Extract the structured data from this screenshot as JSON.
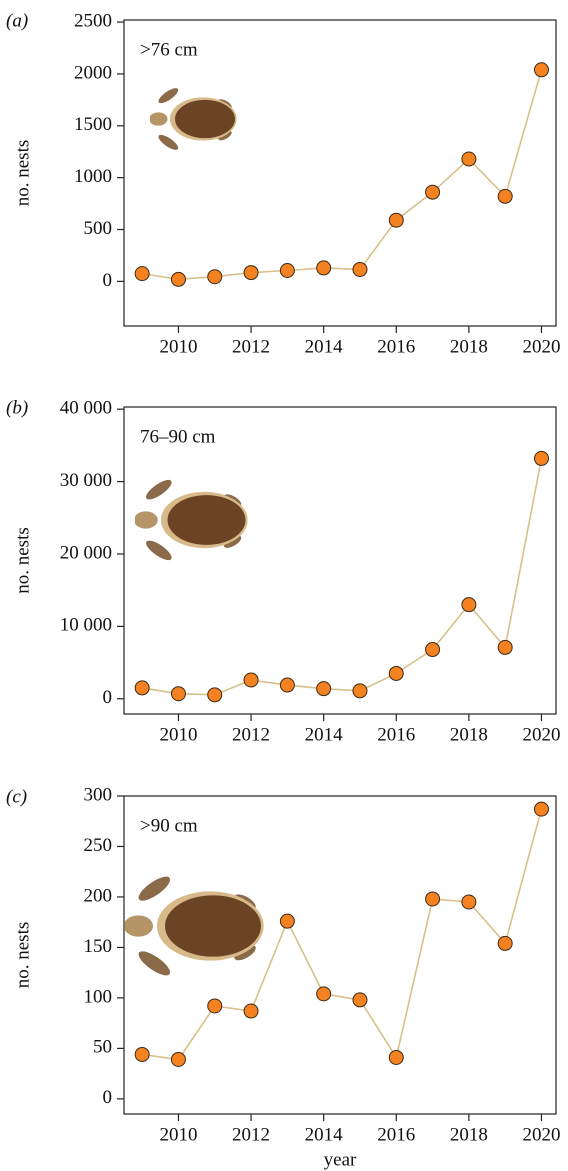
{
  "chart_data": [
    {
      "type": "line",
      "panel_label": "(a)",
      "annotation": ">76 cm",
      "y_label": "no. nests",
      "x": [
        2009,
        2010,
        2011,
        2012,
        2013,
        2014,
        2015,
        2016,
        2017,
        2018,
        2019,
        2020
      ],
      "values": [
        75,
        20,
        45,
        85,
        105,
        130,
        115,
        590,
        860,
        1180,
        820,
        2040
      ],
      "color": "#f58220",
      "line_color": "#d9c08a",
      "xlim": [
        2008.5,
        2020.4
      ],
      "xticks": [
        2010,
        2012,
        2014,
        2016,
        2018,
        2020
      ],
      "ylim": [
        -430,
        2520
      ],
      "yticks": [
        0,
        500,
        1000,
        1500,
        2000,
        2500
      ]
    },
    {
      "type": "line",
      "panel_label": "(b)",
      "annotation": "76–90 cm",
      "y_label": "no. nests",
      "x": [
        2009,
        2010,
        2011,
        2012,
        2013,
        2014,
        2015,
        2016,
        2017,
        2018,
        2019,
        2020
      ],
      "values": [
        1500,
        700,
        550,
        2600,
        1900,
        1400,
        1100,
        3500,
        6800,
        13000,
        7100,
        33200
      ],
      "color": "#f58220",
      "line_color": "#d9c08a",
      "xlim": [
        2008.5,
        2020.4
      ],
      "xticks": [
        2010,
        2012,
        2014,
        2016,
        2018,
        2020
      ],
      "ylim": [
        -2100,
        40300
      ],
      "yticks": [
        0,
        {
          "value": 10000,
          "label": "10 000"
        },
        {
          "value": 20000,
          "label": "20 000"
        },
        {
          "value": 30000,
          "label": "30 000"
        },
        {
          "value": 40000,
          "label": "40 000"
        }
      ]
    },
    {
      "type": "line",
      "panel_label": "(c)",
      "annotation": ">90 cm",
      "y_label": "no. nests",
      "x_label": "year",
      "x": [
        2009,
        2010,
        2011,
        2012,
        2013,
        2014,
        2015,
        2016,
        2017,
        2018,
        2019,
        2020
      ],
      "values": [
        44,
        39,
        92,
        87,
        176,
        104,
        98,
        41,
        198,
        195,
        154,
        287
      ],
      "color": "#f58220",
      "line_color": "#d9c08a",
      "xlim": [
        2008.5,
        2020.4
      ],
      "xticks": [
        2010,
        2012,
        2014,
        2016,
        2018,
        2020
      ],
      "ylim": [
        -15,
        300
      ],
      "yticks": [
        0,
        50,
        100,
        150,
        200,
        250,
        300
      ]
    }
  ]
}
